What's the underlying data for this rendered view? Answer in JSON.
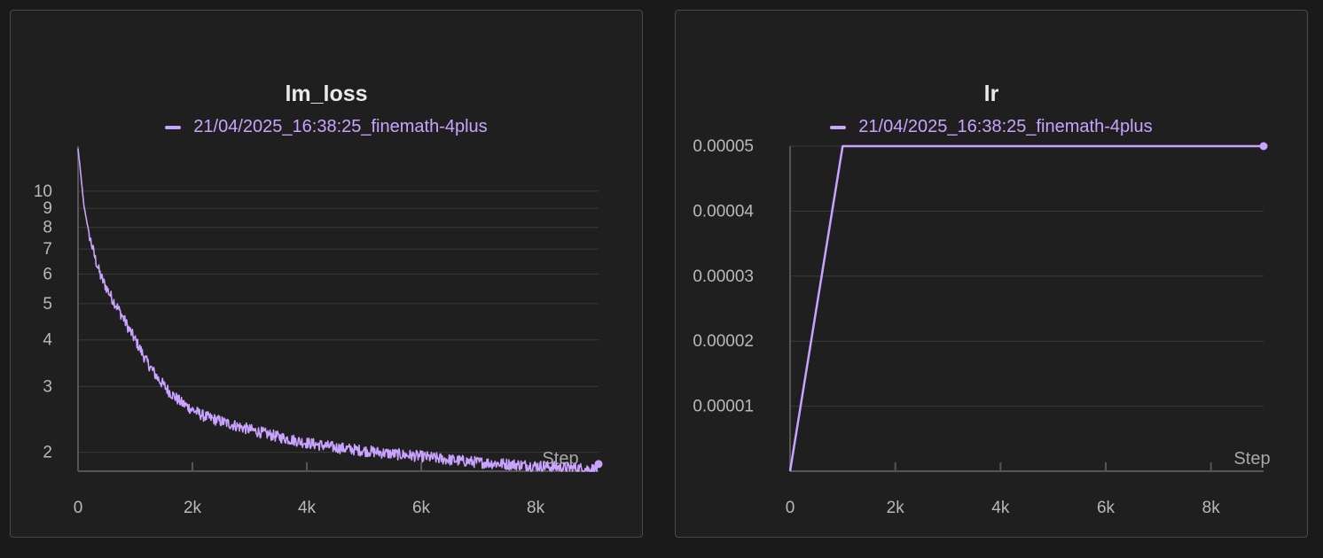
{
  "chart_data": [
    {
      "type": "line",
      "title": "lm_loss",
      "xlabel": "Step",
      "ylabel": "",
      "yscale": "log",
      "xlim": [
        0,
        9100
      ],
      "ylim": [
        1.78,
        13.2
      ],
      "x_ticks": [
        0,
        2000,
        4000,
        6000,
        8000
      ],
      "x_tick_labels": [
        "0",
        "2k",
        "4k",
        "6k",
        "8k"
      ],
      "y_ticks": [
        2,
        3,
        4,
        5,
        6,
        7,
        8,
        9,
        10
      ],
      "y_tick_labels": [
        "2",
        "3",
        "4",
        "5",
        "6",
        "7",
        "8",
        "9",
        "10"
      ],
      "grid": true,
      "legend_position": "top-center",
      "series": [
        {
          "name": "21/04/2025_16:38:25_finemath-4plus",
          "color": "#c9a3ff",
          "x": [
            0,
            50,
            100,
            200,
            300,
            400,
            500,
            600,
            700,
            800,
            900,
            1000,
            1200,
            1400,
            1600,
            1800,
            2000,
            2200,
            2500,
            3000,
            3500,
            4000,
            4500,
            5000,
            5500,
            6000,
            6500,
            7000,
            7500,
            8000,
            8500,
            9100
          ],
          "y": [
            13.0,
            11.0,
            9.2,
            7.6,
            6.6,
            5.9,
            5.5,
            5.15,
            4.85,
            4.55,
            4.25,
            4.0,
            3.5,
            3.15,
            2.9,
            2.72,
            2.6,
            2.5,
            2.42,
            2.3,
            2.2,
            2.12,
            2.06,
            2.02,
            1.98,
            1.95,
            1.91,
            1.88,
            1.86,
            1.84,
            1.82,
            1.8
          ]
        }
      ]
    },
    {
      "type": "line",
      "title": "lr",
      "xlabel": "Step",
      "ylabel": "",
      "xlim": [
        0,
        9000
      ],
      "ylim": [
        0,
        5e-05
      ],
      "x_ticks": [
        0,
        2000,
        4000,
        6000,
        8000
      ],
      "x_tick_labels": [
        "0",
        "2k",
        "4k",
        "6k",
        "8k"
      ],
      "y_ticks": [
        1e-05,
        2e-05,
        3e-05,
        4e-05,
        5e-05
      ],
      "y_tick_labels": [
        "0.00001",
        "0.00002",
        "0.00003",
        "0.00004",
        "0.00005"
      ],
      "grid": true,
      "legend_position": "top-center",
      "series": [
        {
          "name": "21/04/2025_16:38:25_finemath-4plus",
          "color": "#c9a3ff",
          "x": [
            0,
            1000,
            9000
          ],
          "y": [
            0,
            5e-05,
            5e-05
          ]
        }
      ]
    }
  ]
}
